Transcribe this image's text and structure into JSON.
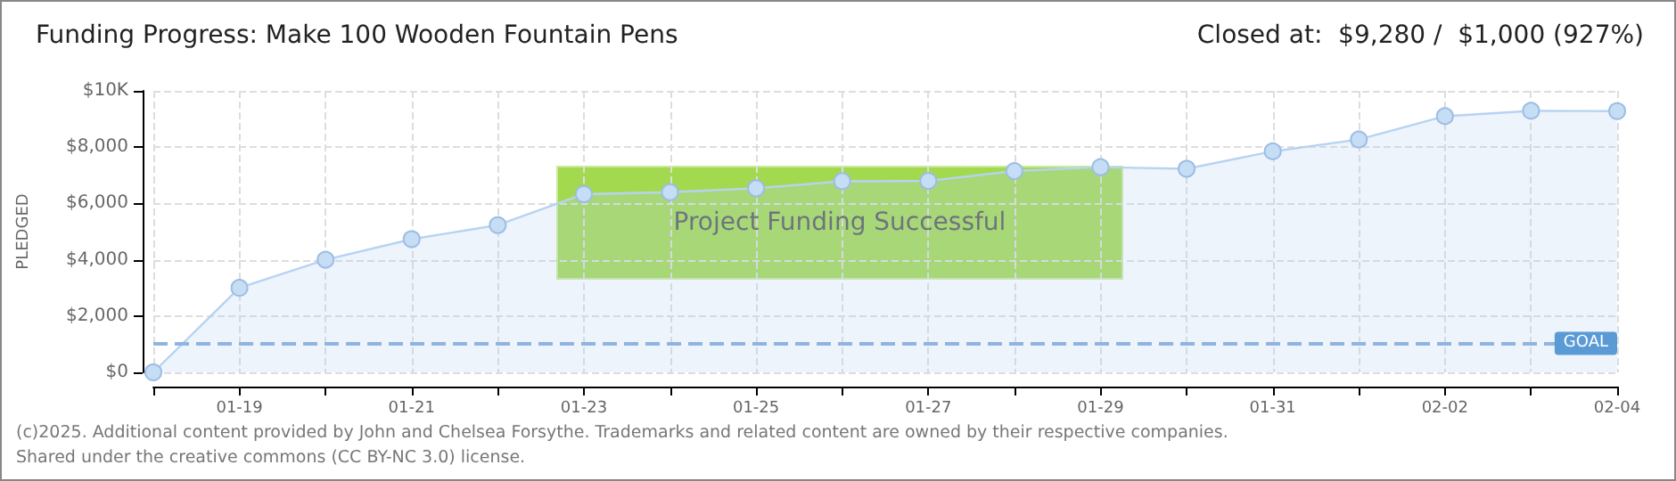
{
  "chart_data": {
    "type": "area",
    "title": "Funding Progress: Make 100 Wooden Fountain Pens",
    "subtitle": "Closed at:  $9,280 /  $1,000 (927%)",
    "ylabel": "PLEDGED",
    "categories": [
      null,
      "01-19",
      null,
      "01-21",
      null,
      "01-23",
      null,
      "01-25",
      null,
      "01-27",
      null,
      "01-29",
      null,
      "01-31",
      null,
      "02-02",
      null,
      "02-04"
    ],
    "series": [
      {
        "color": "#b7d3f2",
        "values": [
          0,
          3000,
          4000,
          4730,
          5230,
          6330,
          6400,
          6540,
          6790,
          6800,
          7150,
          7290,
          7230,
          7850,
          8270,
          9100,
          9290,
          9280
        ]
      }
    ],
    "ylim": [
      0,
      10000
    ],
    "yticks": [
      {
        "value": 0,
        "label": "$0"
      },
      {
        "value": 2000,
        "label": "$2,000"
      },
      {
        "value": 4000,
        "label": "$4,000"
      },
      {
        "value": 6000,
        "label": "$6,000"
      },
      {
        "value": 8000,
        "label": "$8,000"
      },
      {
        "value": 10000,
        "label": "$10K"
      }
    ],
    "ref_lines": [
      {
        "axis": "y",
        "value": 1000,
        "label": "GOAL",
        "color": "#8fb4e0",
        "line_style": "dashed"
      }
    ],
    "annotations": [
      "Project Funding Successful",
      "(c)2025. Additional content provided by John and Chelsea Forsythe. Trademarks and related content are owned by their respective companies.",
      "Shared under the creative commons (CC BY-NC 3.0) license."
    ],
    "grid": true,
    "marker": "circle",
    "line_style": "solid"
  }
}
